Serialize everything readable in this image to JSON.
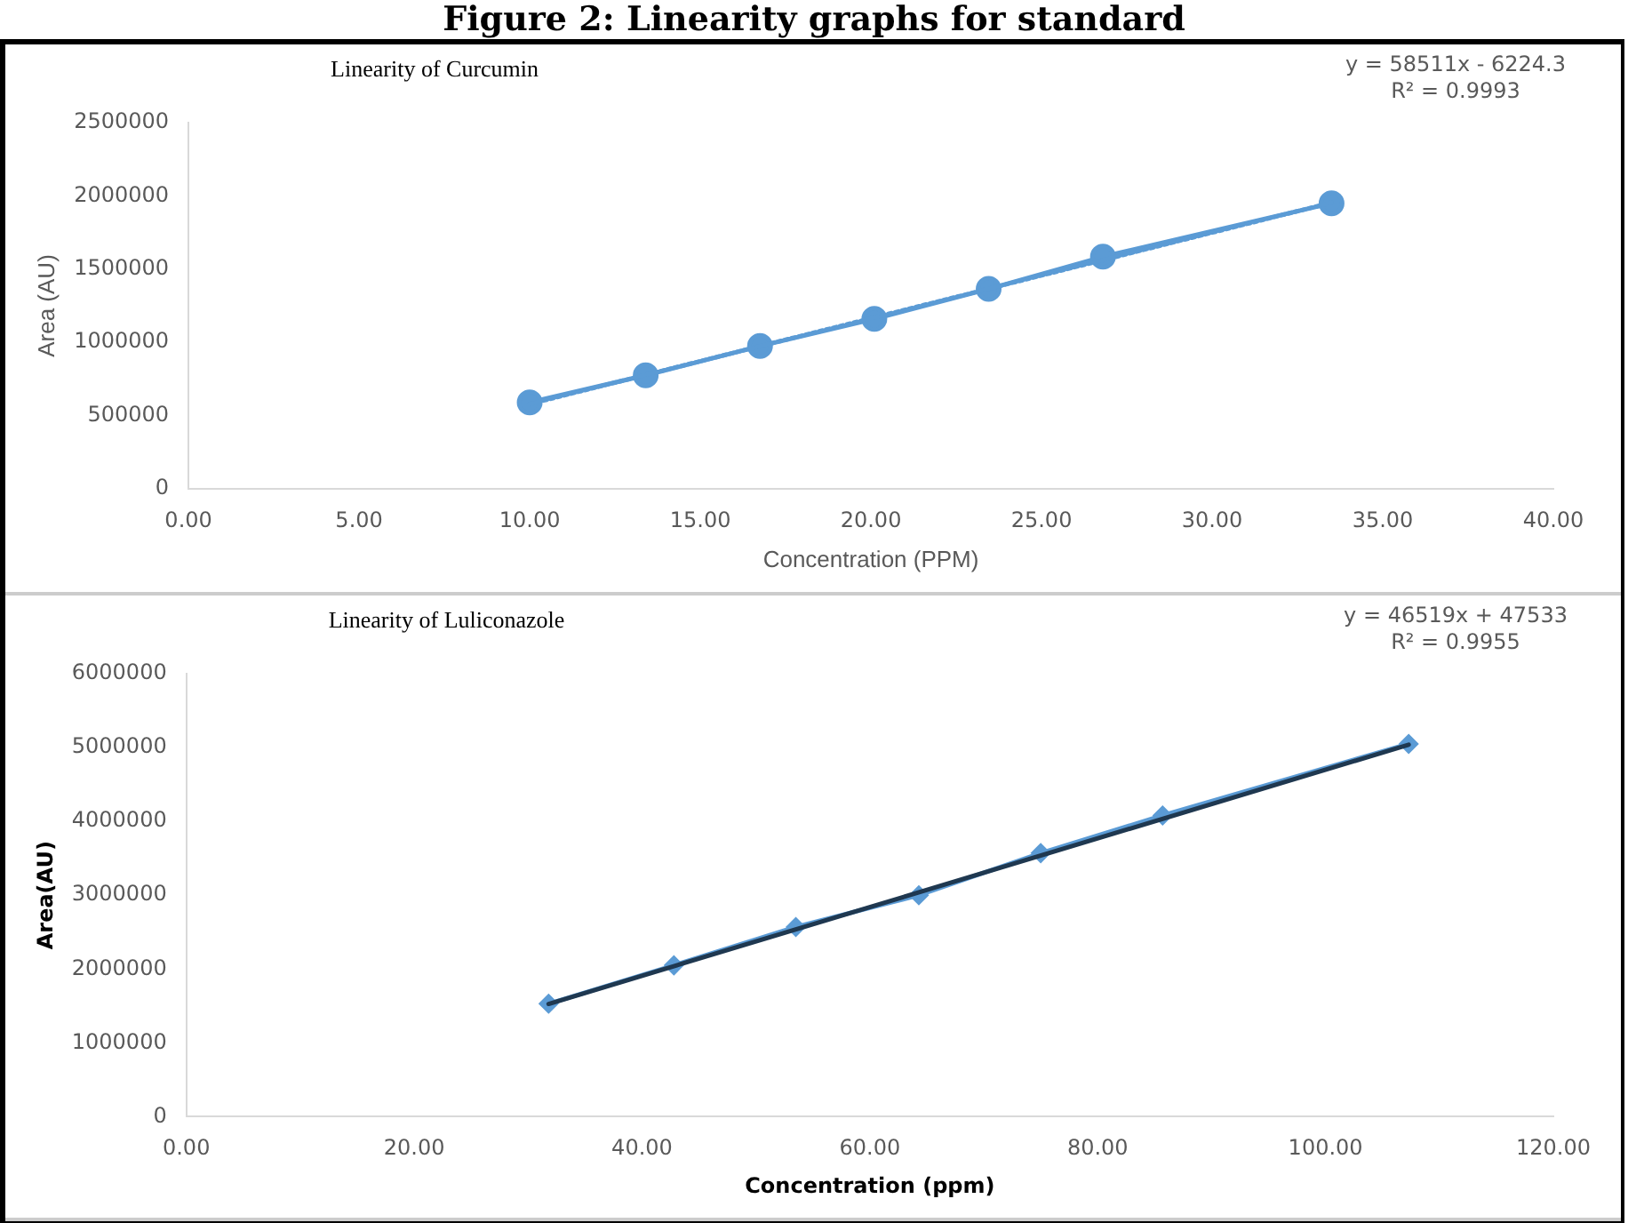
{
  "chart_data": [
    {
      "type": "line",
      "title": "Figure 2: Linearity graphs for standard",
      "subtitle": "Linearity of Curcumin",
      "xlabel": "Concentration (PPM)",
      "ylabel": "Area (AU)",
      "annotations": [
        "y = 58511x - 6224.3",
        "R² = 0.9993"
      ],
      "x": [
        10.0,
        13.4,
        16.75,
        20.1,
        23.45,
        26.8,
        33.5
      ],
      "series": [
        {
          "color": "#5b9bd5",
          "values": [
            590000,
            775000,
            975000,
            1160000,
            1365000,
            1585000,
            1950000
          ],
          "marker": "circle",
          "line_style": "solid"
        },
        {
          "type": "line",
          "color": "#5b9bd5",
          "x": [
            10.0,
            33.5
          ],
          "values": [
            579000,
            1954000
          ],
          "marker": "none",
          "line_style": "dotted"
        }
      ],
      "xlim": [
        0,
        40
      ],
      "xticks": [
        {
          "value": 0,
          "label": "0.00"
        },
        {
          "value": 5,
          "label": "5.00"
        },
        {
          "value": 10,
          "label": "10.00"
        },
        {
          "value": 15,
          "label": "15.00"
        },
        {
          "value": 20,
          "label": "20.00"
        },
        {
          "value": 25,
          "label": "25.00"
        },
        {
          "value": 30,
          "label": "30.00"
        },
        {
          "value": 35,
          "label": "35.00"
        },
        {
          "value": 40,
          "label": "40.00"
        }
      ],
      "ylim": [
        0,
        2500000
      ],
      "yticks": [
        0,
        500000,
        1000000,
        1500000,
        2000000,
        2500000
      ]
    },
    {
      "type": "line",
      "title": "Linearity of Luliconazole",
      "xlabel": "Concentration (ppm)",
      "ylabel": "Area(AU)",
      "annotations": [
        "y = 46519x + 47533",
        "R² = 0.9955"
      ],
      "x": [
        31.8,
        42.8,
        53.5,
        64.3,
        75.0,
        85.7,
        107.3
      ],
      "series": [
        {
          "color": "#5b9bd5",
          "values": [
            1530000,
            2050000,
            2570000,
            3000000,
            3570000,
            4080000,
            5050000
          ],
          "marker": "diamond",
          "line_style": "solid"
        },
        {
          "type": "line",
          "color": "#1f3850",
          "x": [
            31.8,
            107.3
          ],
          "values": [
            1527000,
            5039000
          ],
          "marker": "none",
          "line_style": "solid"
        }
      ],
      "xlim": [
        0,
        120
      ],
      "xticks": [
        {
          "value": 0,
          "label": "0.00"
        },
        {
          "value": 20,
          "label": "20.00"
        },
        {
          "value": 40,
          "label": "40.00"
        },
        {
          "value": 60,
          "label": "60.00"
        },
        {
          "value": 80,
          "label": "80.00"
        },
        {
          "value": 100,
          "label": "100.00"
        },
        {
          "value": 120,
          "label": "120.00"
        }
      ],
      "ylim": [
        0,
        6000000
      ],
      "yticks": [
        0,
        1000000,
        2000000,
        3000000,
        4000000,
        5000000,
        6000000
      ]
    }
  ]
}
